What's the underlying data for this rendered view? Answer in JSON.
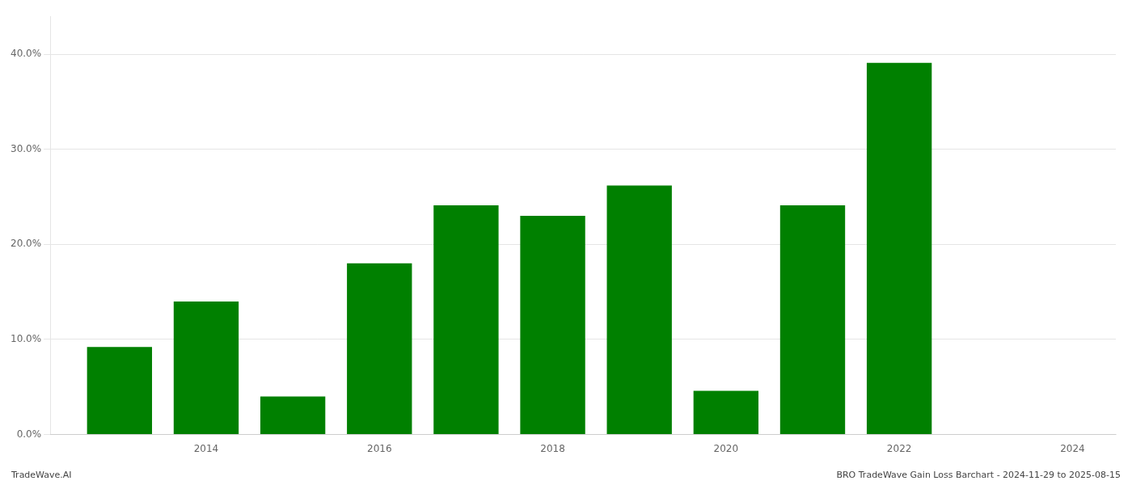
{
  "chart_data": {
    "type": "bar",
    "x": [
      2013,
      2014,
      2015,
      2016,
      2017,
      2018,
      2019,
      2020,
      2021,
      2022
    ],
    "values": [
      0.092,
      0.14,
      0.04,
      0.18,
      0.241,
      0.23,
      0.262,
      0.046,
      0.241,
      0.391
    ],
    "color": "#008000",
    "xlim": [
      2012.2,
      2024.5
    ],
    "xticks": [
      2014,
      2016,
      2018,
      2020,
      2022,
      2024
    ],
    "ylim": [
      0,
      0.44
    ],
    "yticks": [
      {
        "value": 0.0,
        "label": "0.0%"
      },
      {
        "value": 0.1,
        "label": "10.0%"
      },
      {
        "value": 0.2,
        "label": "20.0%"
      },
      {
        "value": 0.3,
        "label": "30.0%"
      },
      {
        "value": 0.4,
        "label": "40.0%"
      }
    ],
    "grid": "y",
    "annotations": [
      "TradeWave.AI",
      "BRO TradeWave Gain Loss Barchart - 2024-11-29 to 2025-08-15"
    ]
  }
}
